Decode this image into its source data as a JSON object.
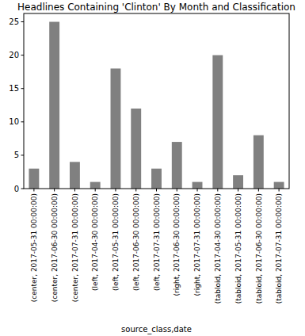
{
  "chart_data": {
    "type": "bar",
    "title": "Headlines Containing 'Clinton' By Month and Classification",
    "x_label": "source_class,date",
    "categories": [
      "(center, 2017-05-31 00:00:00)",
      "(center, 2017-06-30 00:00:00)",
      "(center, 2017-07-31 00:00:00)",
      "(left, 2017-04-30 00:00:00)",
      "(left, 2017-05-31 00:00:00)",
      "(left, 2017-06-30 00:00:00)",
      "(left, 2017-07-31 00:00:00)",
      "(right, 2017-06-30 00:00:00)",
      "(right, 2017-07-31 00:00:00)",
      "(tabloid, 2017-04-30 00:00:00)",
      "(tabloid, 2017-05-31 00:00:00)",
      "(tabloid, 2017-06-30 00:00:00)",
      "(tabloid, 2017-07-31 00:00:00)"
    ],
    "values": [
      3,
      25,
      4,
      1,
      18,
      12,
      3,
      7,
      1,
      20,
      2,
      8,
      1
    ],
    "color": "#808080",
    "ylim": [
      0,
      26.25
    ],
    "yticks": [
      0,
      5,
      10,
      15,
      20,
      25
    ],
    "grid": false
  }
}
